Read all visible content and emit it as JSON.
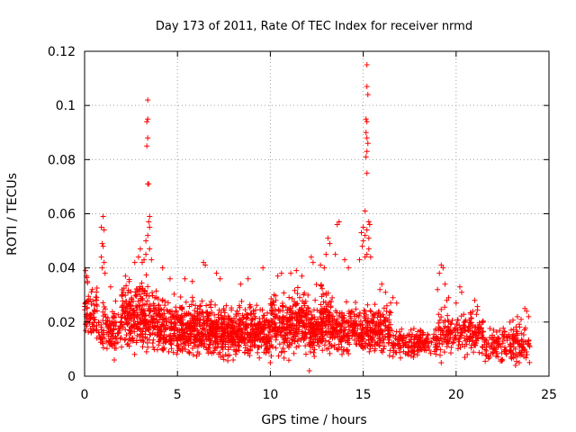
{
  "chart_data": {
    "type": "scatter",
    "title": "Day 173 of 2011, Rate Of TEC Index for receiver nrmd",
    "xlabel": "GPS time / hours",
    "ylabel": "ROTI / TECUs",
    "xlim": [
      0,
      25
    ],
    "ylim": [
      0,
      0.12
    ],
    "x_ticks": [
      0,
      5,
      10,
      15,
      20,
      25
    ],
    "x_tick_labels": [
      "0",
      "5",
      "10",
      "15",
      "20",
      "25"
    ],
    "y_ticks": [
      0,
      0.02,
      0.04,
      0.06,
      0.08,
      0.1,
      0.12
    ],
    "y_tick_labels": [
      "0",
      "0.02",
      "0.04",
      "0.06",
      "0.08",
      "0.1",
      "0.12"
    ],
    "grid": true,
    "marker": "+",
    "series": [
      {
        "name": "ROTI",
        "color": "#ff0000",
        "description": "Dense cloud of roughly 0.005-0.03 TECU readings across the day",
        "density_profile": [
          {
            "x_range": [
              0,
              0.7
            ],
            "y_range": [
              0.01,
              0.038
            ],
            "count": 70
          },
          {
            "x_range": [
              0.7,
              2.0
            ],
            "y_range": [
              0.006,
              0.03
            ],
            "count": 110
          },
          {
            "x_range": [
              2.0,
              4.0
            ],
            "y_range": [
              0.006,
              0.04
            ],
            "count": 300
          },
          {
            "x_range": [
              4.0,
              7.0
            ],
            "y_range": [
              0.006,
              0.032
            ],
            "count": 450
          },
          {
            "x_range": [
              7.0,
              10.0
            ],
            "y_range": [
              0.005,
              0.03
            ],
            "count": 450
          },
          {
            "x_range": [
              10.0,
              13.5
            ],
            "y_range": [
              0.005,
              0.036
            ],
            "count": 500
          },
          {
            "x_range": [
              13.5,
              16.5
            ],
            "y_range": [
              0.006,
              0.03
            ],
            "count": 360
          },
          {
            "x_range": [
              16.5,
              19.0
            ],
            "y_range": [
              0.006,
              0.02
            ],
            "count": 180
          },
          {
            "x_range": [
              19.0,
              21.5
            ],
            "y_range": [
              0.006,
              0.028
            ],
            "count": 200
          },
          {
            "x_range": [
              21.5,
              24.0
            ],
            "y_range": [
              0.004,
              0.022
            ],
            "count": 170
          }
        ],
        "points": [
          [
            3.4,
            0.102
          ],
          [
            3.4,
            0.095
          ],
          [
            3.35,
            0.094
          ],
          [
            3.4,
            0.088
          ],
          [
            3.35,
            0.085
          ],
          [
            3.4,
            0.071
          ],
          [
            3.45,
            0.071
          ],
          [
            3.5,
            0.059
          ],
          [
            3.45,
            0.057
          ],
          [
            3.5,
            0.055
          ],
          [
            3.4,
            0.052
          ],
          [
            3.3,
            0.05
          ],
          [
            3.5,
            0.047
          ],
          [
            3.3,
            0.045
          ],
          [
            3.2,
            0.043
          ],
          [
            3.6,
            0.043
          ],
          [
            3.0,
            0.047
          ],
          [
            2.9,
            0.044
          ],
          [
            2.7,
            0.042
          ],
          [
            3.1,
            0.042
          ],
          [
            1.0,
            0.059
          ],
          [
            0.9,
            0.055
          ],
          [
            1.05,
            0.054
          ],
          [
            0.95,
            0.049
          ],
          [
            1.0,
            0.048
          ],
          [
            0.9,
            0.044
          ],
          [
            1.05,
            0.042
          ],
          [
            0.95,
            0.04
          ],
          [
            1.1,
            0.038
          ],
          [
            0.05,
            0.039
          ],
          [
            0.1,
            0.037
          ],
          [
            0.15,
            0.035
          ],
          [
            15.2,
            0.115
          ],
          [
            15.2,
            0.107
          ],
          [
            15.25,
            0.104
          ],
          [
            15.15,
            0.095
          ],
          [
            15.2,
            0.094
          ],
          [
            15.15,
            0.09
          ],
          [
            15.2,
            0.088
          ],
          [
            15.25,
            0.086
          ],
          [
            15.2,
            0.083
          ],
          [
            15.15,
            0.081
          ],
          [
            15.2,
            0.075
          ],
          [
            15.1,
            0.061
          ],
          [
            15.3,
            0.057
          ],
          [
            15.35,
            0.056
          ],
          [
            15.0,
            0.055
          ],
          [
            15.2,
            0.054
          ],
          [
            14.9,
            0.053
          ],
          [
            15.1,
            0.052
          ],
          [
            15.3,
            0.051
          ],
          [
            15.0,
            0.05
          ],
          [
            14.95,
            0.048
          ],
          [
            15.3,
            0.047
          ],
          [
            15.2,
            0.045
          ],
          [
            15.1,
            0.044
          ],
          [
            15.4,
            0.044
          ],
          [
            14.8,
            0.043
          ],
          [
            13.7,
            0.057
          ],
          [
            13.6,
            0.056
          ],
          [
            13.1,
            0.051
          ],
          [
            13.2,
            0.049
          ],
          [
            13.5,
            0.045
          ],
          [
            14.0,
            0.043
          ],
          [
            14.2,
            0.04
          ],
          [
            13.0,
            0.045
          ],
          [
            12.2,
            0.044
          ],
          [
            12.3,
            0.042
          ],
          [
            12.7,
            0.041
          ],
          [
            12.9,
            0.04
          ],
          [
            19.2,
            0.041
          ],
          [
            19.3,
            0.04
          ],
          [
            19.1,
            0.038
          ],
          [
            19.4,
            0.034
          ],
          [
            19.0,
            0.032
          ],
          [
            20.2,
            0.033
          ],
          [
            20.3,
            0.031
          ],
          [
            19.6,
            0.029
          ],
          [
            19.5,
            0.028
          ],
          [
            20.0,
            0.027
          ],
          [
            6.4,
            0.042
          ],
          [
            6.5,
            0.041
          ],
          [
            7.1,
            0.038
          ],
          [
            7.3,
            0.036
          ],
          [
            8.4,
            0.034
          ],
          [
            8.8,
            0.036
          ],
          [
            9.6,
            0.04
          ],
          [
            10.6,
            0.038
          ],
          [
            10.4,
            0.037
          ],
          [
            11.1,
            0.038
          ],
          [
            11.4,
            0.039
          ],
          [
            11.7,
            0.037
          ],
          [
            5.4,
            0.036
          ],
          [
            5.8,
            0.035
          ],
          [
            4.6,
            0.036
          ],
          [
            4.2,
            0.04
          ],
          [
            2.2,
            0.037
          ],
          [
            2.4,
            0.035
          ],
          [
            2.0,
            0.03
          ],
          [
            1.4,
            0.033
          ],
          [
            16.2,
            0.031
          ],
          [
            16.0,
            0.034
          ],
          [
            15.9,
            0.032
          ],
          [
            16.6,
            0.029
          ],
          [
            16.8,
            0.027
          ],
          [
            21.0,
            0.028
          ],
          [
            22.9,
            0.02
          ],
          [
            23.3,
            0.022
          ],
          [
            23.5,
            0.021
          ],
          [
            23.8,
            0.024
          ],
          [
            23.9,
            0.022
          ],
          [
            23.7,
            0.025
          ],
          [
            23.4,
            0.005
          ],
          [
            23.2,
            0.004
          ],
          [
            19.2,
            0.005
          ],
          [
            12.1,
            0.002
          ],
          [
            1.6,
            0.006
          ],
          [
            10.0,
            0.005
          ],
          [
            8.0,
            0.006
          ],
          [
            21.8,
            0.007
          ],
          [
            22.5,
            0.006
          ],
          [
            20.6,
            0.008
          ]
        ]
      }
    ]
  }
}
